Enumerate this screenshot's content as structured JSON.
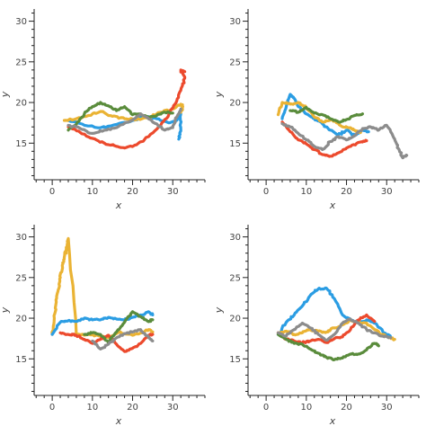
{
  "colors": {
    "blue": "#2b9de3",
    "orange": "#eab334",
    "red": "#ec4a2d",
    "green": "#5a8c3c",
    "gray": "#8c8c8c"
  },
  "chart_data": [
    {
      "type": "line",
      "xlabel": "x",
      "ylabel": "y",
      "xlim": [
        -4.5,
        38
      ],
      "ylim": [
        10.5,
        31.5
      ],
      "xticks": [
        0,
        10,
        20,
        30
      ],
      "yticks": [
        15,
        20,
        25,
        30
      ],
      "grid": false,
      "series": [
        {
          "color": "blue",
          "x": [
            4,
            8,
            12,
            16,
            20,
            23,
            26,
            29,
            31,
            32,
            32,
            31.5
          ],
          "y": [
            17.8,
            17.2,
            16.9,
            17.3,
            17.8,
            18.3,
            18.0,
            17.5,
            17.8,
            18.6,
            16.5,
            15.5
          ]
        },
        {
          "color": "orange",
          "x": [
            3,
            6,
            9,
            12,
            15,
            18,
            21,
            24,
            27,
            30,
            32,
            32.5,
            32
          ],
          "y": [
            17.8,
            18.0,
            18.4,
            18.9,
            18.3,
            18.0,
            17.9,
            18.2,
            18.8,
            19.2,
            19.8,
            19.5,
            18.8
          ]
        },
        {
          "color": "red",
          "x": [
            4,
            7,
            10,
            13,
            16,
            18,
            21,
            24,
            27,
            29,
            31,
            32,
            33,
            32,
            33
          ],
          "y": [
            17.0,
            16.3,
            15.6,
            15.0,
            14.6,
            14.4,
            14.8,
            15.8,
            17.2,
            18.5,
            20.2,
            21.5,
            23.0,
            24.0,
            23.8
          ]
        },
        {
          "color": "green",
          "x": [
            4,
            6,
            8,
            10,
            12,
            14,
            16,
            18,
            20,
            22,
            24,
            26,
            28,
            30
          ],
          "y": [
            16.6,
            17.3,
            18.6,
            19.5,
            20.0,
            19.6,
            19.0,
            19.5,
            18.5,
            18.6,
            18.1,
            18.4,
            18.8,
            18.7
          ]
        },
        {
          "color": "gray",
          "x": [
            4,
            7,
            10,
            13,
            16,
            19,
            22,
            25,
            28,
            30,
            31,
            32
          ],
          "y": [
            17.2,
            16.8,
            16.2,
            16.6,
            16.9,
            17.6,
            18.6,
            17.6,
            16.6,
            16.9,
            18.2,
            19.2
          ]
        }
      ]
    },
    {
      "type": "line",
      "xlabel": "x",
      "ylabel": "y",
      "xlim": [
        -4.5,
        38
      ],
      "ylim": [
        10.5,
        31.5
      ],
      "xticks": [
        0,
        10,
        20,
        30
      ],
      "yticks": [
        15,
        20,
        25,
        30
      ],
      "grid": false,
      "series": [
        {
          "color": "blue",
          "x": [
            4,
            5,
            6,
            7,
            8,
            10,
            12,
            14,
            16,
            18,
            20,
            22,
            24,
            25.5
          ],
          "y": [
            18.0,
            19.5,
            21.0,
            20.5,
            19.5,
            18.6,
            18.0,
            17.4,
            16.6,
            16.0,
            16.6,
            15.9,
            16.6,
            16.4
          ]
        },
        {
          "color": "orange",
          "x": [
            3,
            4,
            6,
            8,
            10,
            12,
            14,
            16,
            17,
            19,
            21,
            22,
            23.5
          ],
          "y": [
            18.5,
            20.0,
            19.8,
            20.0,
            19.4,
            18.2,
            17.6,
            17.9,
            17.7,
            17.0,
            16.9,
            16.6,
            16.3
          ]
        },
        {
          "color": "red",
          "x": [
            4,
            6,
            8,
            10,
            12,
            14,
            16,
            18,
            20,
            22,
            24,
            25
          ],
          "y": [
            17.6,
            16.4,
            15.4,
            14.9,
            14.2,
            13.6,
            13.4,
            13.8,
            14.4,
            14.8,
            15.2,
            15.3
          ]
        },
        {
          "color": "green",
          "x": [
            6,
            8,
            10,
            12,
            14,
            16,
            18,
            20,
            22,
            24
          ],
          "y": [
            19.0,
            18.8,
            19.4,
            18.7,
            18.5,
            18.0,
            17.6,
            17.9,
            18.4,
            18.6
          ]
        },
        {
          "color": "gray",
          "x": [
            4,
            6,
            8,
            10,
            12,
            14,
            16,
            18,
            20,
            22,
            24,
            26,
            28,
            30,
            32,
            33,
            34,
            35
          ],
          "y": [
            17.4,
            17.0,
            16.2,
            15.4,
            14.6,
            14.2,
            15.2,
            15.8,
            15.4,
            15.9,
            16.8,
            17.0,
            16.6,
            17.2,
            15.5,
            14.3,
            13.2,
            13.5
          ]
        }
      ]
    },
    {
      "type": "line",
      "xlabel": "x",
      "ylabel": "y",
      "xlim": [
        -4.5,
        38
      ],
      "ylim": [
        10.5,
        31.5
      ],
      "xticks": [
        0,
        10,
        20,
        30
      ],
      "yticks": [
        15,
        20,
        25,
        30
      ],
      "grid": false,
      "series": [
        {
          "color": "orange",
          "x": [
            0,
            0.5,
            1,
            1.5,
            2,
            2.5,
            3,
            3.5,
            4,
            3.5,
            4,
            6,
            9,
            12,
            14,
            17,
            20,
            22,
            24,
            25
          ],
          "y": [
            18,
            20,
            22,
            23.5,
            25,
            26.5,
            27.5,
            28.5,
            29.5,
            28.0,
            29.8,
            18.0,
            18.0,
            17.8,
            17.6,
            18.3,
            17.9,
            18.2,
            18.6,
            18.3
          ]
        },
        {
          "color": "blue",
          "x": [
            0,
            2,
            4,
            6,
            8,
            10,
            12,
            14,
            16,
            18,
            20,
            22,
            24,
            25
          ],
          "y": [
            18,
            19.5,
            19.7,
            19.6,
            20.0,
            19.8,
            19.8,
            20.1,
            19.9,
            19.8,
            20.1,
            20.4,
            20.8,
            20.4
          ]
        },
        {
          "color": "red",
          "x": [
            2,
            4,
            6,
            8,
            10,
            12,
            14,
            16,
            18,
            20,
            22,
            24,
            25
          ],
          "y": [
            18.2,
            18.0,
            17.9,
            17.4,
            16.9,
            17.4,
            17.9,
            16.8,
            15.9,
            16.3,
            16.9,
            17.9,
            18.0
          ]
        },
        {
          "color": "green",
          "x": [
            8,
            10,
            12,
            14,
            16,
            18,
            20,
            22,
            24,
            25
          ],
          "y": [
            18.0,
            18.2,
            18.0,
            17.0,
            18.3,
            19.5,
            20.8,
            20.2,
            19.6,
            19.8
          ]
        },
        {
          "color": "gray",
          "x": [
            10,
            12,
            14,
            16,
            18,
            20,
            22,
            24,
            25
          ],
          "y": [
            17.2,
            16.2,
            16.8,
            17.6,
            18.1,
            18.3,
            18.6,
            17.6,
            17.2
          ]
        }
      ]
    },
    {
      "type": "line",
      "xlabel": "x",
      "ylabel": "y",
      "xlim": [
        -4.5,
        38
      ],
      "ylim": [
        10.5,
        31.5
      ],
      "xticks": [
        0,
        10,
        20,
        30
      ],
      "yticks": [
        15,
        20,
        25,
        30
      ],
      "grid": false,
      "series": [
        {
          "color": "blue",
          "x": [
            3,
            5,
            7,
            9,
            11,
            13,
            15,
            17,
            19,
            21,
            23,
            25,
            27,
            29,
            31
          ],
          "y": [
            18,
            19.5,
            20.4,
            21.5,
            22.8,
            23.6,
            23.7,
            22.4,
            20.4,
            19.8,
            19.4,
            19.8,
            19.4,
            18.4,
            17.7
          ]
        },
        {
          "color": "orange",
          "x": [
            3,
            5,
            7,
            9,
            11,
            13,
            15,
            17,
            19,
            21,
            23,
            25,
            27,
            29,
            31,
            32
          ],
          "y": [
            18.2,
            18.4,
            18.0,
            18.2,
            18.6,
            18.4,
            18.3,
            18.8,
            19.2,
            19.8,
            19.4,
            19.4,
            18.6,
            18.0,
            17.6,
            17.4
          ]
        },
        {
          "color": "red",
          "x": [
            3,
            5,
            7,
            9,
            11,
            13,
            15,
            17,
            19,
            21,
            23,
            25,
            27
          ],
          "y": [
            18.2,
            17.4,
            17.2,
            17.0,
            17.2,
            17.4,
            17.0,
            17.5,
            17.7,
            18.6,
            19.8,
            20.4,
            19.6
          ]
        },
        {
          "color": "green",
          "x": [
            3,
            5,
            7,
            9,
            11,
            13,
            15,
            17,
            19,
            21,
            23,
            25,
            27,
            28
          ],
          "y": [
            18.0,
            17.4,
            16.9,
            16.8,
            16.2,
            15.7,
            15.2,
            14.9,
            15.1,
            15.6,
            15.6,
            16.1,
            16.9,
            16.6
          ]
        },
        {
          "color": "gray",
          "x": [
            3,
            5,
            7,
            9,
            11,
            13,
            15,
            17,
            19,
            21,
            23,
            25,
            27,
            29,
            31
          ],
          "y": [
            18.2,
            17.8,
            18.6,
            19.4,
            18.8,
            18.0,
            17.3,
            18.0,
            19.4,
            19.9,
            19.4,
            18.6,
            18.2,
            17.8,
            17.6
          ]
        }
      ]
    }
  ]
}
